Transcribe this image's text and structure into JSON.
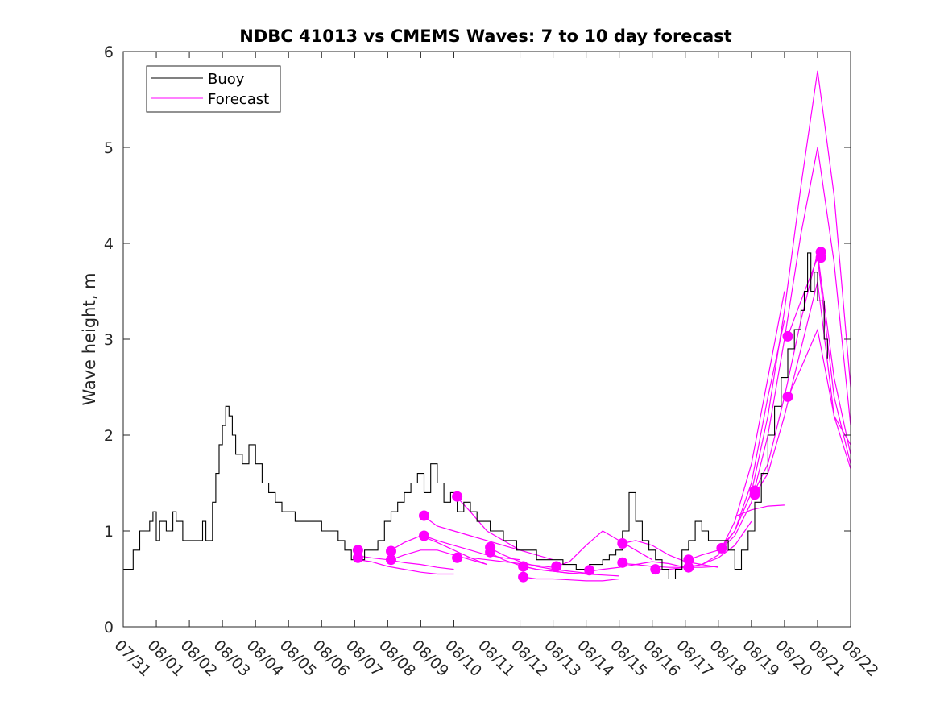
{
  "chart_data": {
    "type": "line",
    "title": "NDBC 41013 vs CMEMS Waves: 7 to 10 day forecast",
    "xlabel": "",
    "ylabel": "Wave height, m",
    "xlim": [
      0,
      22
    ],
    "ylim": [
      0,
      6
    ],
    "x_unit": "days since 07/31",
    "x_tick_positions": [
      0,
      1,
      2,
      3,
      4,
      5,
      6,
      7,
      8,
      9,
      10,
      11,
      12,
      13,
      14,
      15,
      16,
      17,
      18,
      19,
      20,
      21,
      22
    ],
    "x_tick_labels": [
      "07/31",
      "08/01",
      "08/02",
      "08/03",
      "08/04",
      "08/05",
      "08/06",
      "08/07",
      "08/08",
      "08/09",
      "08/10",
      "08/11",
      "08/12",
      "08/13",
      "08/14",
      "08/15",
      "08/16",
      "08/17",
      "08/18",
      "08/19",
      "08/20",
      "08/21",
      "08/22"
    ],
    "y_ticks": [
      0,
      1,
      2,
      3,
      4,
      5,
      6
    ],
    "grid": false,
    "legend": {
      "placement": "top-left",
      "entries": [
        {
          "name": "Buoy",
          "color": "#000000"
        },
        {
          "name": "Forecast",
          "color": "#ff00ff"
        }
      ]
    },
    "series": [
      {
        "name": "Buoy",
        "color": "#000000",
        "x": [
          0,
          0.2,
          0.3,
          0.5,
          0.65,
          0.8,
          0.9,
          1.0,
          1.1,
          1.2,
          1.3,
          1.5,
          1.6,
          1.8,
          2.0,
          2.2,
          2.4,
          2.5,
          2.7,
          2.8,
          2.9,
          3.0,
          3.1,
          3.2,
          3.3,
          3.4,
          3.5,
          3.6,
          3.8,
          4.0,
          4.2,
          4.4,
          4.6,
          4.8,
          5.0,
          5.2,
          5.5,
          5.8,
          6.0,
          6.2,
          6.5,
          6.7,
          6.9,
          7.1,
          7.3,
          7.5,
          7.7,
          7.9,
          8.1,
          8.3,
          8.5,
          8.7,
          8.9,
          9.1,
          9.3,
          9.5,
          9.7,
          9.9,
          10.1,
          10.3,
          10.5,
          10.7,
          10.9,
          11.1,
          11.3,
          11.5,
          11.7,
          11.9,
          12.1,
          12.3,
          12.5,
          12.7,
          12.9,
          13.1,
          13.3,
          13.5,
          13.7,
          13.9,
          14.1,
          14.3,
          14.5,
          14.7,
          14.9,
          15.1,
          15.3,
          15.5,
          15.7,
          15.9,
          16.1,
          16.3,
          16.5,
          16.7,
          16.9,
          17.1,
          17.3,
          17.5,
          17.7,
          17.9,
          18.1,
          18.3,
          18.5,
          18.7,
          18.9,
          19.1,
          19.3,
          19.5,
          19.7,
          19.9,
          20.1,
          20.3,
          20.5,
          20.6,
          20.7,
          20.8,
          20.9,
          21.0,
          21.1,
          21.2,
          21.3
        ],
        "values": [
          0.6,
          0.6,
          0.8,
          1.0,
          1.0,
          1.1,
          1.2,
          0.9,
          1.1,
          1.1,
          1.0,
          1.2,
          1.1,
          0.9,
          0.9,
          0.9,
          1.1,
          0.9,
          1.3,
          1.6,
          1.9,
          2.1,
          2.3,
          2.2,
          2.0,
          1.8,
          1.8,
          1.7,
          1.9,
          1.7,
          1.5,
          1.4,
          1.3,
          1.2,
          1.2,
          1.1,
          1.1,
          1.1,
          1.0,
          1.0,
          0.9,
          0.8,
          0.7,
          0.7,
          0.8,
          0.8,
          0.9,
          1.1,
          1.2,
          1.3,
          1.4,
          1.5,
          1.6,
          1.4,
          1.7,
          1.5,
          1.3,
          1.4,
          1.2,
          1.3,
          1.2,
          1.1,
          1.1,
          1.0,
          1.0,
          0.9,
          0.9,
          0.8,
          0.8,
          0.8,
          0.7,
          0.7,
          0.7,
          0.7,
          0.65,
          0.65,
          0.6,
          0.6,
          0.65,
          0.65,
          0.7,
          0.75,
          0.8,
          1.0,
          1.4,
          1.1,
          0.9,
          0.8,
          0.7,
          0.6,
          0.5,
          0.6,
          0.8,
          0.9,
          1.1,
          1.0,
          0.9,
          0.9,
          0.9,
          0.8,
          0.6,
          0.8,
          1.0,
          1.3,
          1.6,
          2.0,
          2.3,
          2.6,
          2.9,
          3.1,
          3.3,
          3.5,
          3.9,
          3.5,
          3.7,
          3.4,
          3.4,
          3.0,
          2.8
        ]
      }
    ],
    "forecast_series_color": "#ff00ff",
    "forecast_lines": [
      {
        "x": [
          7.1,
          7.5,
          8,
          8.5,
          9,
          9.5,
          10
        ],
        "values": [
          0.7,
          0.68,
          0.63,
          0.6,
          0.57,
          0.55,
          0.55
        ]
      },
      {
        "x": [
          7.1,
          7.5,
          8,
          8.5,
          9,
          9.5,
          10
        ],
        "values": [
          0.74,
          0.72,
          0.7,
          0.67,
          0.65,
          0.62,
          0.6
        ]
      },
      {
        "x": [
          8.1,
          8.5,
          9,
          9.5,
          10,
          10.5,
          11
        ],
        "values": [
          0.8,
          0.88,
          0.95,
          0.88,
          0.8,
          0.72,
          0.65
        ]
      },
      {
        "x": [
          8.1,
          8.5,
          9,
          9.5,
          10,
          10.5,
          11
        ],
        "values": [
          0.7,
          0.75,
          0.8,
          0.8,
          0.75,
          0.7,
          0.65
        ]
      },
      {
        "x": [
          9.1,
          9.5,
          10,
          10.5,
          11,
          11.5,
          12
        ],
        "values": [
          1.15,
          1.05,
          1.0,
          0.95,
          0.9,
          0.85,
          0.8
        ]
      },
      {
        "x": [
          9.1,
          9.5,
          10,
          10.5,
          11,
          11.5,
          12
        ],
        "values": [
          0.95,
          0.9,
          0.85,
          0.8,
          0.75,
          0.72,
          0.7
        ]
      },
      {
        "x": [
          10.1,
          10.5,
          11,
          11.5,
          12,
          12.5,
          13
        ],
        "values": [
          1.35,
          1.2,
          1.0,
          0.9,
          0.8,
          0.75,
          0.7
        ]
      },
      {
        "x": [
          10.1,
          10.5,
          11,
          11.5,
          12,
          12.5,
          13
        ],
        "values": [
          0.72,
          0.72,
          0.7,
          0.68,
          0.66,
          0.64,
          0.62
        ]
      },
      {
        "x": [
          11.1,
          11.5,
          12,
          12.5,
          13,
          13.5,
          14
        ],
        "values": [
          0.82,
          0.75,
          0.68,
          0.63,
          0.6,
          0.58,
          0.56
        ]
      },
      {
        "x": [
          11.1,
          11.5,
          12,
          12.5,
          13,
          13.5,
          14
        ],
        "values": [
          0.77,
          0.7,
          0.64,
          0.6,
          0.58,
          0.56,
          0.55
        ]
      },
      {
        "x": [
          12.1,
          12.5,
          13,
          13.5,
          14,
          14.5,
          15
        ],
        "values": [
          0.63,
          0.6,
          0.58,
          0.56,
          0.55,
          0.54,
          0.53
        ]
      },
      {
        "x": [
          12.1,
          12.5,
          13,
          13.5,
          14,
          14.5,
          15
        ],
        "values": [
          0.52,
          0.5,
          0.5,
          0.49,
          0.48,
          0.48,
          0.5
        ]
      },
      {
        "x": [
          13.1,
          13.5,
          14,
          14.5,
          15,
          15.5,
          16
        ],
        "values": [
          0.63,
          0.68,
          0.85,
          1.0,
          0.9,
          0.8,
          0.7
        ]
      },
      {
        "x": [
          14.1,
          14.5,
          15,
          15.5,
          16,
          16.5,
          17
        ],
        "values": [
          0.58,
          0.6,
          0.62,
          0.65,
          0.68,
          0.66,
          0.62
        ]
      },
      {
        "x": [
          15.1,
          15.5,
          16,
          16.5,
          17,
          17.5,
          18
        ],
        "values": [
          0.87,
          0.9,
          0.85,
          0.75,
          0.68,
          0.65,
          0.62
        ]
      },
      {
        "x": [
          15.1,
          15.5,
          16,
          16.5,
          17,
          17.5,
          18
        ],
        "values": [
          0.66,
          0.65,
          0.63,
          0.62,
          0.62,
          0.62,
          0.63
        ]
      },
      {
        "x": [
          16.1,
          16.5,
          17,
          17.5,
          18,
          18.5,
          19
        ],
        "values": [
          0.6,
          0.6,
          0.62,
          0.65,
          0.72,
          0.85,
          1.1
        ]
      },
      {
        "x": [
          17.1,
          17.5,
          18,
          18.5,
          19,
          19.5,
          20
        ],
        "values": [
          0.7,
          0.75,
          0.8,
          1.0,
          1.5,
          2.4,
          3.2
        ]
      },
      {
        "x": [
          17.1,
          17.5,
          18,
          18.5,
          19,
          19.5,
          20
        ],
        "values": [
          0.62,
          0.65,
          0.75,
          1.1,
          1.7,
          2.6,
          3.5
        ]
      },
      {
        "x": [
          18.1,
          18.5,
          19,
          19.5,
          20,
          20.5,
          21,
          21.5,
          22
        ],
        "values": [
          0.82,
          1.0,
          1.4,
          2.2,
          3.3,
          4.6,
          5.8,
          4.5,
          2.5
        ]
      },
      {
        "x": [
          18.1,
          18.5,
          19,
          19.5,
          20,
          20.5,
          21,
          21.5,
          22
        ],
        "values": [
          0.82,
          0.95,
          1.3,
          2.0,
          3.0,
          4.1,
          5.0,
          3.8,
          2.1
        ]
      },
      {
        "x": [
          19.1,
          19.5,
          20,
          20.5,
          21,
          21.5,
          22
        ],
        "values": [
          1.42,
          1.7,
          2.4,
          3.2,
          3.9,
          2.6,
          1.8
        ]
      },
      {
        "x": [
          19.1,
          19.5,
          20,
          20.5,
          21,
          21.5,
          22
        ],
        "values": [
          1.38,
          1.6,
          2.2,
          2.9,
          3.6,
          2.2,
          1.65
        ]
      },
      {
        "x": [
          20.1,
          20.5,
          21,
          21.5,
          22
        ],
        "values": [
          3.03,
          3.4,
          3.85,
          2.4,
          1.7
        ]
      },
      {
        "x": [
          20.1,
          20.5,
          21,
          21.5,
          22
        ],
        "values": [
          2.39,
          2.7,
          3.1,
          2.2,
          1.9
        ]
      },
      {
        "x": [
          18.5,
          19,
          19.5,
          20
        ],
        "values": [
          1.15,
          1.22,
          1.26,
          1.27
        ]
      }
    ],
    "forecast_points": {
      "x": [
        7.1,
        7.1,
        8.1,
        8.1,
        9.1,
        9.1,
        10.1,
        10.1,
        11.1,
        11.1,
        12.1,
        12.1,
        13.1,
        14.1,
        15.1,
        15.1,
        16.1,
        17.1,
        17.1,
        18.1,
        19.1,
        19.1,
        20.1,
        20.1,
        21.1,
        21.1
      ],
      "values": [
        0.8,
        0.72,
        0.79,
        0.7,
        1.16,
        0.95,
        1.36,
        0.72,
        0.83,
        0.78,
        0.63,
        0.52,
        0.63,
        0.59,
        0.87,
        0.67,
        0.6,
        0.7,
        0.62,
        0.82,
        1.42,
        1.38,
        3.03,
        2.4,
        3.91,
        3.85
      ]
    }
  }
}
